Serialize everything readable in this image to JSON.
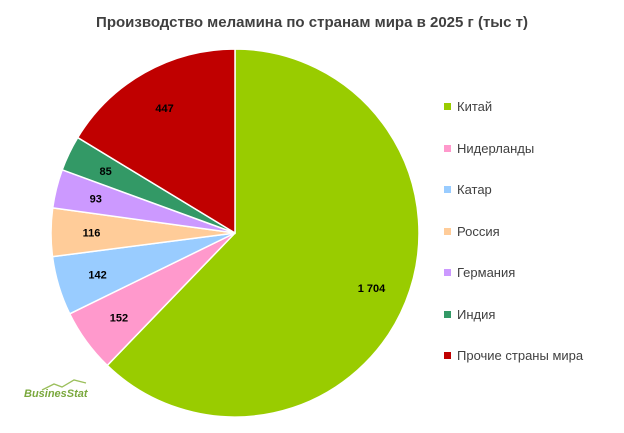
{
  "chart_data": {
    "type": "pie",
    "title": "Производство меламина по странам мира в 2025 г (тыс т)",
    "slices": [
      {
        "name": "Китай",
        "value": 1704,
        "label": "1 704",
        "color": "#99cc00"
      },
      {
        "name": "Нидерланды",
        "value": 152,
        "label": "152",
        "color": "#ff99cc"
      },
      {
        "name": "Катар",
        "value": 142,
        "label": "142",
        "color": "#99ccff"
      },
      {
        "name": "Россия",
        "value": 116,
        "label": "116",
        "color": "#ffcc99"
      },
      {
        "name": "Германия",
        "value": 93,
        "label": "93",
        "color": "#cc99ff"
      },
      {
        "name": "Индия",
        "value": 85,
        "label": "85",
        "color": "#339966"
      },
      {
        "name": "Прочие страны мира",
        "value": 447,
        "label": "447",
        "color": "#c00000"
      }
    ],
    "start_angle_deg": 0,
    "direction": "clockwise",
    "legend_position": "right"
  },
  "watermark": {
    "text": "BusinesStat",
    "color": "#7aa83d"
  }
}
